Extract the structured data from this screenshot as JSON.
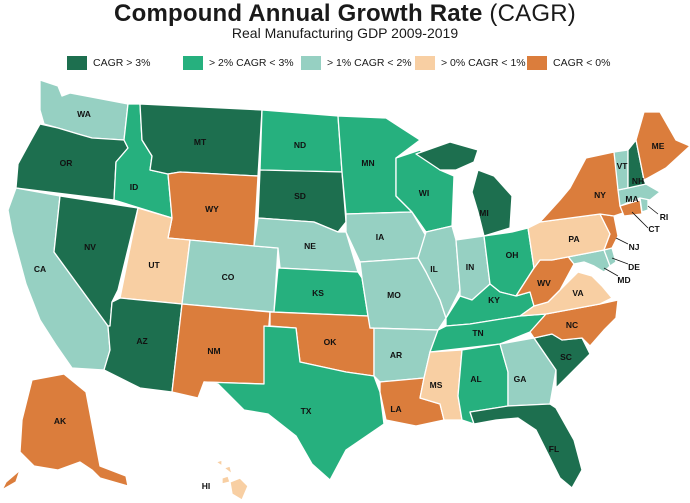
{
  "title": {
    "bold": "Compound Annual Growth Rate",
    "light": "(CAGR)"
  },
  "subtitle": "Real Manufacturing GDP 2009-2019",
  "colors": {
    "dark_green": "#1d6f4f",
    "green": "#26b07e",
    "teal": "#96d0c2",
    "peach": "#f8cfa3",
    "orange": "#db7d3c"
  },
  "legend": [
    {
      "key": "dark_green",
      "label": "CAGR > 3%"
    },
    {
      "key": "green",
      "label": "> 2% CAGR < 3%"
    },
    {
      "key": "teal",
      "label": "> 1% CAGR < 2%"
    },
    {
      "key": "peach",
      "label": "> 0% CAGR < 1%"
    },
    {
      "key": "orange",
      "label": "CAGR < 0%"
    }
  ],
  "states": {
    "WA": {
      "label": "WA",
      "category": "teal"
    },
    "OR": {
      "label": "OR",
      "category": "dark_green"
    },
    "CA": {
      "label": "CA",
      "category": "teal"
    },
    "NV": {
      "label": "NV",
      "category": "dark_green"
    },
    "ID": {
      "label": "ID",
      "category": "green"
    },
    "MT": {
      "label": "MT",
      "category": "dark_green"
    },
    "WY": {
      "label": "WY",
      "category": "orange"
    },
    "UT": {
      "label": "UT",
      "category": "peach"
    },
    "AZ": {
      "label": "AZ",
      "category": "dark_green"
    },
    "CO": {
      "label": "CO",
      "category": "teal"
    },
    "NM": {
      "label": "NM",
      "category": "orange"
    },
    "ND": {
      "label": "ND",
      "category": "green"
    },
    "SD": {
      "label": "SD",
      "category": "dark_green"
    },
    "NE": {
      "label": "NE",
      "category": "teal"
    },
    "KS": {
      "label": "KS",
      "category": "green"
    },
    "OK": {
      "label": "OK",
      "category": "orange"
    },
    "TX": {
      "label": "TX",
      "category": "green"
    },
    "MN": {
      "label": "MN",
      "category": "green"
    },
    "IA": {
      "label": "IA",
      "category": "teal"
    },
    "MO": {
      "label": "MO",
      "category": "teal"
    },
    "AR": {
      "label": "AR",
      "category": "teal"
    },
    "LA": {
      "label": "LA",
      "category": "orange"
    },
    "WI": {
      "label": "WI",
      "category": "green"
    },
    "MI": {
      "label": "MI",
      "category": "dark_green"
    },
    "IL": {
      "label": "IL",
      "category": "teal"
    },
    "IN": {
      "label": "IN",
      "category": "teal"
    },
    "OH": {
      "label": "OH",
      "category": "green"
    },
    "KY": {
      "label": "KY",
      "category": "green"
    },
    "TN": {
      "label": "TN",
      "category": "green"
    },
    "MS": {
      "label": "MS",
      "category": "peach"
    },
    "AL": {
      "label": "AL",
      "category": "green"
    },
    "GA": {
      "label": "GA",
      "category": "teal"
    },
    "FL": {
      "label": "FL",
      "category": "dark_green"
    },
    "SC": {
      "label": "SC",
      "category": "dark_green"
    },
    "NC": {
      "label": "NC",
      "category": "orange"
    },
    "VA": {
      "label": "VA",
      "category": "peach"
    },
    "WV": {
      "label": "WV",
      "category": "orange"
    },
    "PA": {
      "label": "PA",
      "category": "peach"
    },
    "NY": {
      "label": "NY",
      "category": "orange"
    },
    "VT": {
      "label": "VT",
      "category": "teal"
    },
    "NH": {
      "label": "NH",
      "category": "dark_green"
    },
    "ME": {
      "label": "ME",
      "category": "orange"
    },
    "MA": {
      "label": "MA",
      "category": "teal"
    },
    "RI": {
      "label": "RI",
      "category": "teal"
    },
    "CT": {
      "label": "CT",
      "category": "orange"
    },
    "NJ": {
      "label": "NJ",
      "category": "orange"
    },
    "DE": {
      "label": "DE",
      "category": "teal"
    },
    "MD": {
      "label": "MD",
      "category": "teal"
    },
    "AK": {
      "label": "AK",
      "category": "orange"
    },
    "HI": {
      "label": "HI",
      "category": "peach"
    }
  }
}
